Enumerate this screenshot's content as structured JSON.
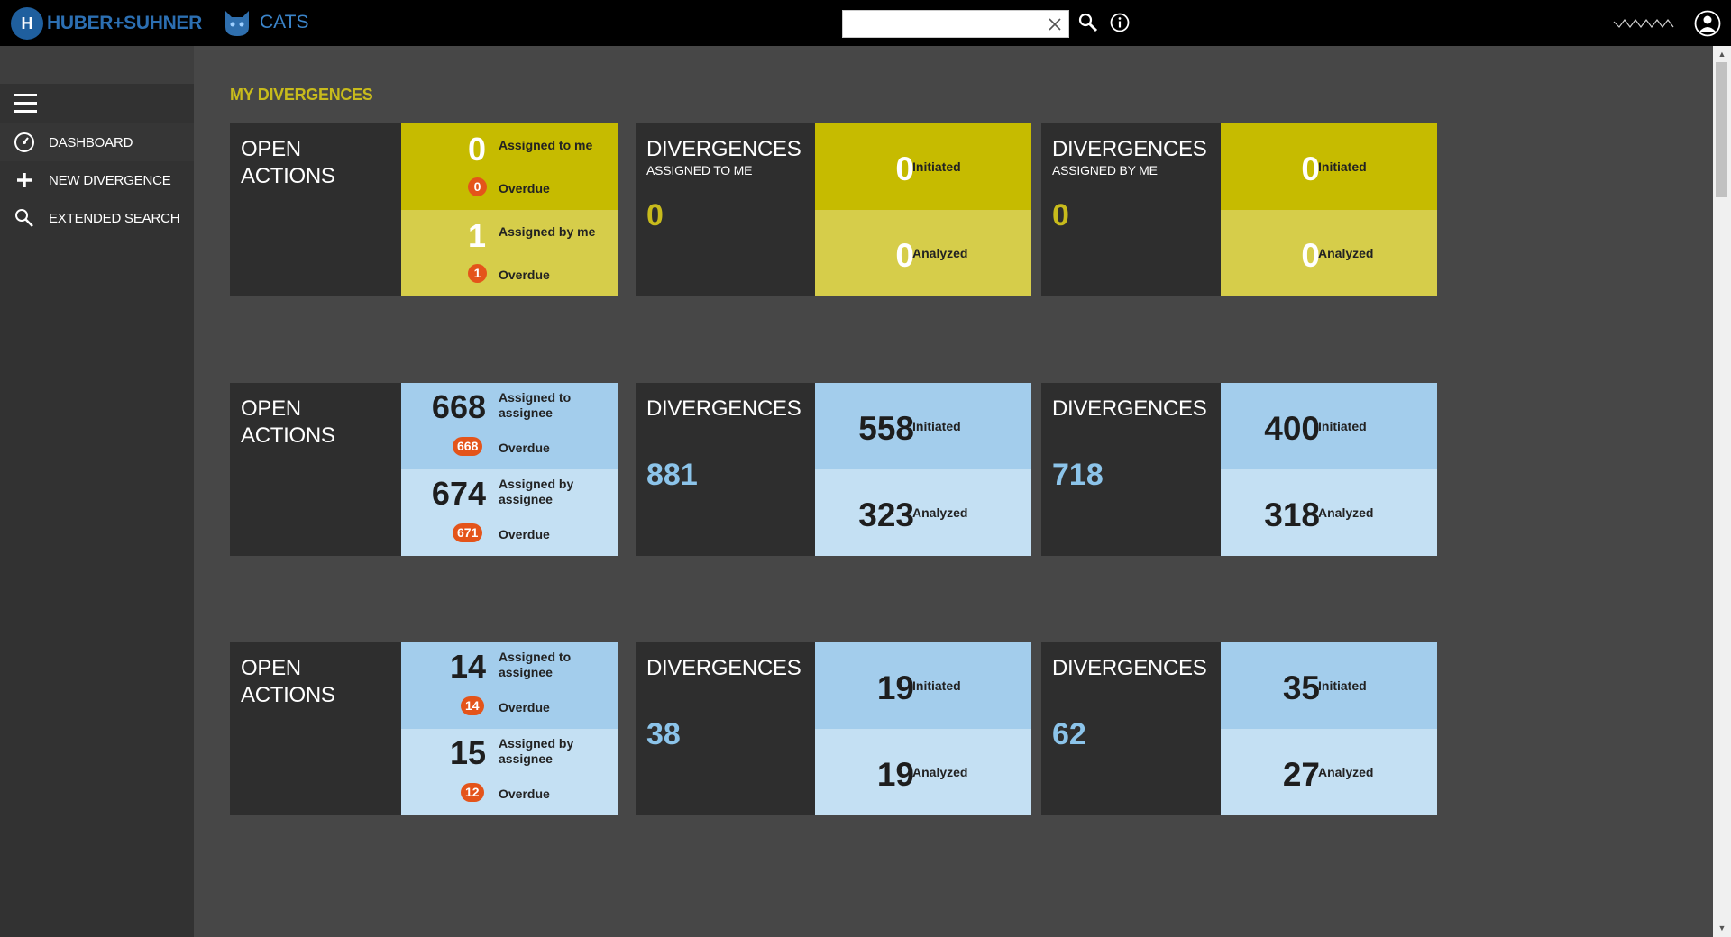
{
  "brand": {
    "mark": "H",
    "name": "HUBER+SUHNER"
  },
  "app": {
    "name": "CATS"
  },
  "search": {
    "value": "",
    "placeholder": ""
  },
  "sidebar": {
    "items": [
      {
        "label": "DASHBOARD",
        "icon": "dashboard-icon"
      },
      {
        "label": "NEW DIVERGENCE",
        "icon": "plus-icon"
      },
      {
        "label": "EXTENDED SEARCH",
        "icon": "search-icon"
      }
    ]
  },
  "sections": [
    {
      "title": "MY DIVERGENCES",
      "color": "#c8bb1c",
      "open_actions": {
        "title_line1": "OPEN",
        "title_line2": "ACTIONS",
        "top_value": "0",
        "top_label_1": "Assigned to me",
        "top_label_2": "",
        "top_overdue": "0",
        "bottom_value": "1",
        "bottom_label_1": "Assigned by me",
        "bottom_label_2": "",
        "bottom_overdue": "1",
        "overdue_label": "Overdue"
      },
      "div_a": {
        "title": "DIVERGENCES",
        "subtitle": "ASSIGNED TO ME",
        "total": "0",
        "initiated": "0",
        "analyzed": "0"
      },
      "div_b": {
        "title": "DIVERGENCES",
        "subtitle": "ASSIGNED BY ME",
        "total": "0",
        "initiated": "0",
        "analyzed": "0"
      }
    },
    {
      "title": "",
      "color": "#8fc3e8",
      "open_actions": {
        "title_line1": "OPEN",
        "title_line2": "ACTIONS",
        "top_value": "668",
        "top_label_1": "Assigned to",
        "top_label_2": "assignee",
        "top_overdue": "668",
        "bottom_value": "674",
        "bottom_label_1": "Assigned by",
        "bottom_label_2": "assignee",
        "bottom_overdue": "671",
        "overdue_label": "Overdue"
      },
      "div_a": {
        "title": "DIVERGENCES",
        "subtitle": "",
        "total": "881",
        "initiated": "558",
        "analyzed": "323"
      },
      "div_b": {
        "title": "DIVERGENCES",
        "subtitle": "",
        "total": "718",
        "initiated": "400",
        "analyzed": "318"
      }
    },
    {
      "title": "",
      "color": "#8fc3e8",
      "open_actions": {
        "title_line1": "OPEN",
        "title_line2": "ACTIONS",
        "top_value": "14",
        "top_label_1": "Assigned to",
        "top_label_2": "assignee",
        "top_overdue": "14",
        "bottom_value": "15",
        "bottom_label_1": "Assigned by",
        "bottom_label_2": "assignee",
        "bottom_overdue": "12",
        "overdue_label": "Overdue"
      },
      "div_a": {
        "title": "DIVERGENCES",
        "subtitle": "",
        "total": "38",
        "initiated": "19",
        "analyzed": "19"
      },
      "div_b": {
        "title": "DIVERGENCES",
        "subtitle": "",
        "total": "62",
        "initiated": "35",
        "analyzed": "27"
      }
    },
    {
      "title": "",
      "color": "#8fc3e8"
    }
  ],
  "labels": {
    "initiated": "Initiated",
    "analyzed": "Analyzed"
  }
}
